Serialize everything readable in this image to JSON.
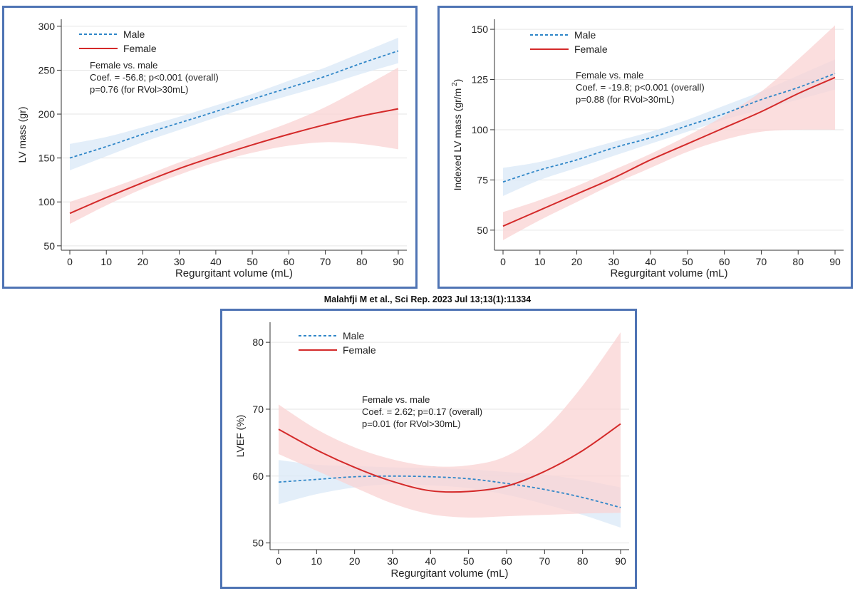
{
  "caption": "Malahfji M et al., Sci Rep. 2023 Jul 13;13(1):11334",
  "colors": {
    "male_line": "#2f86c8",
    "male_band": "#d9e8f7",
    "female_line": "#d42a2a",
    "female_band": "#f9d3d3",
    "panel_border": "#4f74b4",
    "grid": "#e6e6e6"
  },
  "chart_data": [
    {
      "type": "line",
      "ylabel": "LV mass (gr)",
      "xlabel": "Regurgitant volume (mL)",
      "xlim": [
        0,
        90
      ],
      "ylim": [
        45,
        308
      ],
      "xticks": [
        0,
        10,
        20,
        30,
        40,
        50,
        60,
        70,
        80,
        90
      ],
      "yticks": [
        50,
        100,
        150,
        200,
        250,
        300
      ],
      "legend": [
        "Male",
        "Female"
      ],
      "annotation": [
        "Female vs. male",
        "Coef. = -56.8; p<0.001 (overall)",
        "p=0.76 (for RVol>30mL)"
      ],
      "x": [
        0,
        10,
        20,
        30,
        40,
        50,
        60,
        70,
        80,
        90
      ],
      "series": [
        {
          "name": "Male",
          "values": [
            150,
            163,
            177,
            190,
            203,
            217,
            230,
            243,
            258,
            272
          ],
          "lower": [
            136,
            152,
            168,
            182,
            196,
            209,
            221,
            233,
            246,
            258
          ],
          "upper": [
            166,
            174,
            185,
            197,
            210,
            223,
            238,
            253,
            270,
            287
          ]
        },
        {
          "name": "Female",
          "values": [
            87,
            105,
            122,
            138,
            152,
            165,
            177,
            188,
            198,
            206
          ],
          "lower": [
            75,
            96,
            115,
            131,
            145,
            156,
            164,
            168,
            166,
            160
          ],
          "upper": [
            100,
            114,
            129,
            145,
            160,
            175,
            190,
            208,
            230,
            253
          ]
        }
      ]
    },
    {
      "type": "line",
      "ylabel": "Indexed LV mass (gr/m",
      "ylabel_sup": "2",
      "ylabel_close": ")",
      "xlabel": "Regurgitant volume (mL)",
      "xlim": [
        0,
        90
      ],
      "ylim": [
        40,
        155
      ],
      "xticks": [
        0,
        10,
        20,
        30,
        40,
        50,
        60,
        70,
        80,
        90
      ],
      "yticks": [
        50,
        75,
        100,
        125,
        150
      ],
      "legend": [
        "Male",
        "Female"
      ],
      "annotation": [
        "Female vs. male",
        "Coef. = -19.8; p<0.001 (overall)",
        "p=0.88 (for RVol>30mL)"
      ],
      "x": [
        0,
        10,
        20,
        30,
        40,
        50,
        60,
        70,
        80,
        90
      ],
      "series": [
        {
          "name": "Male",
          "values": [
            74,
            80,
            85,
            91,
            96,
            102,
            108,
            115,
            121,
            128
          ],
          "lower": [
            67,
            75,
            81,
            87,
            93,
            99,
            105,
            110,
            115,
            120
          ],
          "upper": [
            81,
            84,
            89,
            94,
            99,
            105,
            112,
            119,
            127,
            135
          ]
        },
        {
          "name": "Female",
          "values": [
            52,
            60,
            68,
            76,
            85,
            93,
            101,
            109,
            118,
            126
          ],
          "lower": [
            45,
            55,
            64,
            73,
            81,
            89,
            95,
            99,
            100,
            100
          ],
          "upper": [
            59,
            65,
            72,
            80,
            88,
            97,
            107,
            119,
            135,
            152
          ]
        }
      ]
    },
    {
      "type": "line",
      "ylabel": "LVEF (%)",
      "xlabel": "Regurgitant volume (mL)",
      "xlim": [
        0,
        90
      ],
      "ylim": [
        49,
        83
      ],
      "xticks": [
        0,
        10,
        20,
        30,
        40,
        50,
        60,
        70,
        80,
        90
      ],
      "yticks": [
        50,
        60,
        70,
        80
      ],
      "legend": [
        "Male",
        "Female"
      ],
      "annotation": [
        "Female vs. male",
        "Coef. = 2.62; p=0.17 (overall)",
        "p=0.01 (for RVol>30mL)"
      ],
      "x": [
        0,
        10,
        20,
        30,
        40,
        50,
        60,
        70,
        80,
        90
      ],
      "series": [
        {
          "name": "Male",
          "values": [
            59.1,
            59.5,
            59.9,
            60.0,
            59.9,
            59.6,
            58.9,
            58.0,
            56.8,
            55.3
          ],
          "lower": [
            55.8,
            57.3,
            58.3,
            58.8,
            58.6,
            58.2,
            57.2,
            55.8,
            54.2,
            52.3
          ],
          "upper": [
            62.4,
            61.7,
            61.5,
            61.3,
            61.2,
            61.0,
            60.6,
            60.2,
            59.4,
            58.3
          ]
        },
        {
          "name": "Female",
          "values": [
            67.0,
            63.9,
            61.3,
            59.2,
            57.8,
            57.7,
            58.5,
            60.7,
            63.8,
            67.8
          ],
          "lower": [
            63.3,
            60.8,
            58.3,
            55.9,
            54.3,
            53.8,
            54.0,
            54.2,
            54.4,
            54.5
          ],
          "upper": [
            70.7,
            67.0,
            64.3,
            62.5,
            61.5,
            61.6,
            63.0,
            67.0,
            73.5,
            81.5
          ]
        }
      ]
    }
  ]
}
